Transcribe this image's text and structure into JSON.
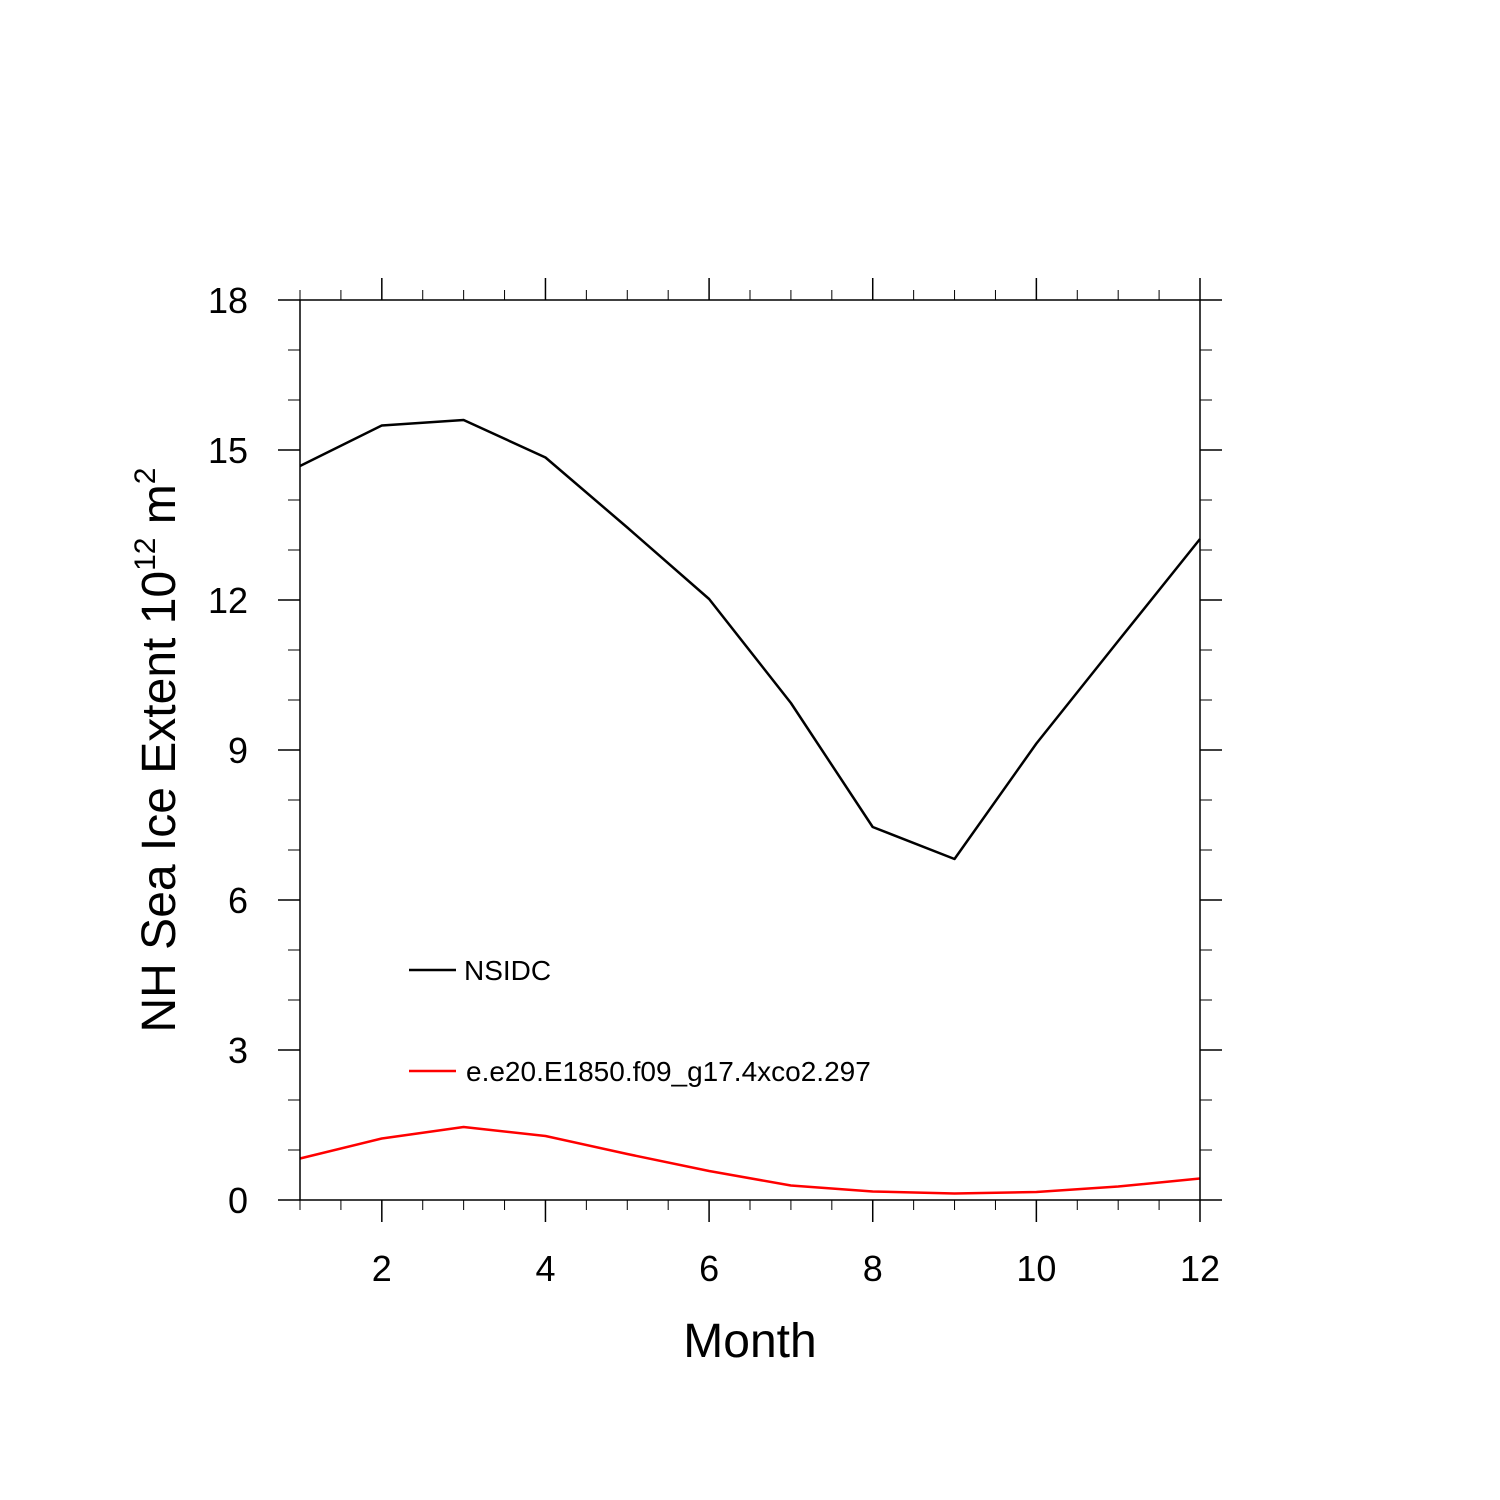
{
  "chart_data": {
    "type": "line",
    "xlabel": "Month",
    "ylabel": {
      "main": "NH Sea Ice Extent 10",
      "exp1": "12",
      "unit": " m",
      "exp2": "2"
    },
    "xlim": [
      1,
      12
    ],
    "ylim": [
      0,
      18
    ],
    "x_ticks": [
      2,
      4,
      6,
      8,
      10,
      12
    ],
    "y_ticks": [
      0,
      3,
      6,
      9,
      12,
      15,
      18
    ],
    "x_ticks_text": [
      "2",
      "4",
      "6",
      "8",
      "10",
      "12"
    ],
    "y_ticks_text": [
      "0",
      "3",
      "6",
      "9",
      "12",
      "15",
      "18"
    ],
    "grid": false,
    "legend_position": "lower-left",
    "x": [
      1,
      2,
      3,
      4,
      5,
      6,
      7,
      8,
      9,
      10,
      11,
      12
    ],
    "series": [
      {
        "name": "NSIDC",
        "color": "#000000",
        "values": [
          14.68,
          15.49,
          15.6,
          14.85,
          13.45,
          12.02,
          9.94,
          7.46,
          6.82,
          9.13,
          11.18,
          13.22
        ]
      },
      {
        "name": "e.e20.E1850.f09_g17.4xco2.297",
        "color": "#ff0000",
        "values": [
          0.83,
          1.23,
          1.46,
          1.28,
          0.92,
          0.58,
          0.29,
          0.17,
          0.13,
          0.16,
          0.27,
          0.43
        ]
      }
    ]
  }
}
